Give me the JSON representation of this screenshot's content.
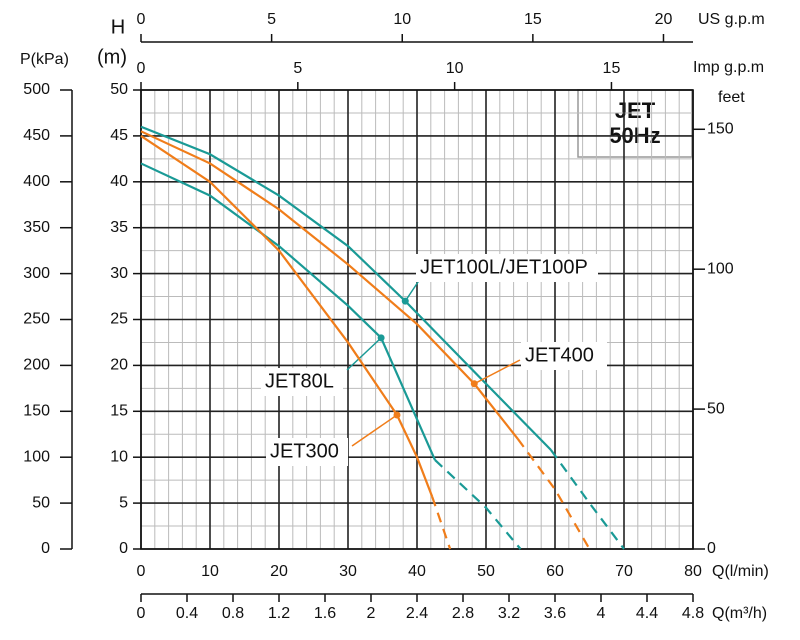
{
  "chart_data": {
    "type": "line",
    "box_title": "JET",
    "box_subtitle": "50Hz",
    "x_label": "Q(l/min)",
    "xlim": [
      0,
      80
    ],
    "xticks": [
      0,
      10,
      20,
      30,
      40,
      50,
      60,
      70,
      80
    ],
    "y_label": "H",
    "y_unit": "(m)",
    "ylim": [
      0,
      50
    ],
    "yticks": [
      0,
      5,
      10,
      15,
      20,
      25,
      30,
      35,
      40,
      45,
      50
    ],
    "grid": true,
    "x_minor_step": 2,
    "y_minor_step": 2.5,
    "pressure_axis": {
      "label": "P(kPa)",
      "lim": [
        0,
        500
      ],
      "ticks": [
        0,
        50,
        100,
        150,
        200,
        250,
        300,
        350,
        400,
        450,
        500
      ]
    },
    "feet_axis": {
      "label": "feet",
      "lim": [
        0,
        164.04
      ],
      "ticks": [
        0,
        50,
        100,
        150
      ]
    },
    "us_gpm_axis": {
      "label": "US g.p.m",
      "lim": [
        0,
        21.13
      ],
      "ticks": [
        0,
        5,
        10,
        15,
        20
      ]
    },
    "imp_gpm_axis": {
      "label": "Imp g.p.m",
      "lim": [
        0,
        17.6
      ],
      "ticks": [
        0,
        5,
        10,
        15
      ]
    },
    "m3h_axis": {
      "label": "Q(m³/h)",
      "lim": [
        0,
        4.8
      ],
      "ticks": [
        0,
        0.4,
        0.8,
        1.2,
        1.6,
        2,
        2.4,
        2.8,
        3.2,
        3.6,
        4,
        4.4,
        4.8
      ]
    },
    "series": [
      {
        "name": "JET100L/JET100P",
        "color": "#1a9a96",
        "x": [
          0,
          10,
          20,
          30,
          38.3,
          50,
          59.4
        ],
        "values": [
          46,
          43,
          38.5,
          33,
          27,
          18,
          10.8
        ],
        "extension": {
          "x": [
            59.4,
            65,
            70
          ],
          "values": [
            10.8,
            5,
            0
          ]
        },
        "marker": {
          "x": 38.3,
          "value": 27
        }
      },
      {
        "name": "JET400",
        "color": "#f07d1a",
        "x": [
          0,
          10,
          20,
          30,
          40,
          48.3,
          54.6
        ],
        "values": [
          45.5,
          42,
          37,
          31,
          24.5,
          18,
          12
        ],
        "extension": {
          "x": [
            54.6,
            60,
            65
          ],
          "values": [
            12,
            6.5,
            0
          ]
        },
        "marker": {
          "x": 48.3,
          "value": 18
        }
      },
      {
        "name": "JET80L",
        "color": "#1a9a96",
        "x": [
          0,
          10,
          20,
          30,
          34.8,
          42.6
        ],
        "values": [
          42,
          38.5,
          33,
          26.5,
          23,
          9.7
        ],
        "extension": {
          "x": [
            42.6,
            50,
            55
          ],
          "values": [
            9.7,
            4.5,
            0
          ]
        },
        "marker": {
          "x": 34.8,
          "value": 23
        }
      },
      {
        "name": "JET300",
        "color": "#f07d1a",
        "x": [
          0,
          10,
          20,
          30,
          37.1,
          40,
          42.2
        ],
        "values": [
          45,
          40,
          32.5,
          22.5,
          14.6,
          10,
          5.7
        ],
        "extension": {
          "x": [
            42.2,
            44.8
          ],
          "values": [
            5.7,
            0
          ]
        },
        "marker": {
          "x": 37.1,
          "value": 14.6
        }
      }
    ]
  }
}
